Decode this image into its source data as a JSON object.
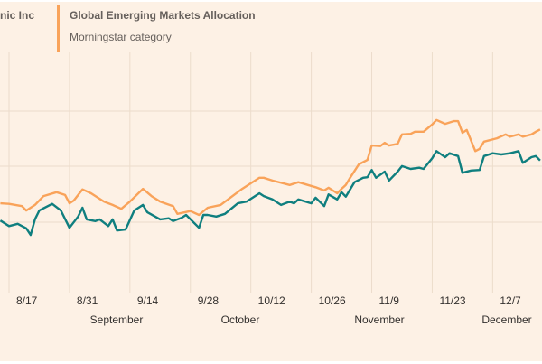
{
  "legend": [
    {
      "name": "nic Inc",
      "color": "#0f7f7f"
    },
    {
      "name": "Global Emerging Markets Allocation",
      "subtitle": "Morningstar category",
      "color": "#f9a35a"
    }
  ],
  "chart_data": {
    "type": "line",
    "title": "",
    "xlabel": "",
    "ylabel": "",
    "x_tick_labels": [
      "8/17",
      "8/31",
      "9/14",
      "9/28",
      "10/12",
      "10/26",
      "11/9",
      "11/23",
      "12/7"
    ],
    "month_labels": [
      "September",
      "October",
      "November",
      "December"
    ],
    "y_ticks_printed": false,
    "grid": true,
    "legend_placement": "top",
    "series": [
      {
        "name": "nic Inc",
        "color": "#0f7f7f",
        "points": [
          [
            "8/15",
            0.3
          ],
          [
            "8/17",
            -0.7
          ],
          [
            "8/19",
            -0.3
          ],
          [
            "8/21",
            -1.1
          ],
          [
            "8/22",
            -2.3
          ],
          [
            "8/23",
            0.5
          ],
          [
            "8/24",
            2.1
          ],
          [
            "8/27",
            3.3
          ],
          [
            "8/29",
            2.1
          ],
          [
            "8/31",
            -1.0
          ],
          [
            "9/2",
            1.0
          ],
          [
            "9/3",
            2.6
          ],
          [
            "9/4",
            0.5
          ],
          [
            "9/6",
            0.2
          ],
          [
            "9/7",
            0.5
          ],
          [
            "9/9",
            -0.7
          ],
          [
            "9/10",
            0.5
          ],
          [
            "9/11",
            -1.5
          ],
          [
            "9/13",
            -1.3
          ],
          [
            "9/15",
            2.1
          ],
          [
            "9/17",
            3.1
          ],
          [
            "9/18",
            1.8
          ],
          [
            "9/21",
            0.5
          ],
          [
            "9/23",
            0.7
          ],
          [
            "9/24",
            0.2
          ],
          [
            "9/26",
            0.8
          ],
          [
            "9/27",
            1.3
          ],
          [
            "9/30",
            -1.0
          ],
          [
            "10/1",
            1.3
          ],
          [
            "10/2",
            1.3
          ],
          [
            "10/4",
            1.0
          ],
          [
            "10/6",
            1.5
          ],
          [
            "10/9",
            3.4
          ],
          [
            "10/11",
            3.7
          ],
          [
            "10/14",
            5.2
          ],
          [
            "10/15",
            4.7
          ],
          [
            "10/17",
            4.1
          ],
          [
            "10/19",
            3.1
          ],
          [
            "10/21",
            3.7
          ],
          [
            "10/22",
            3.4
          ],
          [
            "10/23",
            4.1
          ],
          [
            "10/26",
            3.4
          ],
          [
            "10/27",
            4.4
          ],
          [
            "10/29",
            2.9
          ],
          [
            "10/30",
            5.0
          ],
          [
            "11/1",
            4.1
          ],
          [
            "11/2",
            5.4
          ],
          [
            "11/3",
            4.6
          ],
          [
            "11/5",
            7.2
          ],
          [
            "11/7",
            8.0
          ],
          [
            "11/8",
            8.1
          ],
          [
            "11/9",
            9.4
          ],
          [
            "11/10",
            8.0
          ],
          [
            "11/12",
            9.1
          ],
          [
            "11/13",
            7.5
          ],
          [
            "11/15",
            9.1
          ],
          [
            "11/16",
            10.1
          ],
          [
            "11/18",
            9.6
          ],
          [
            "11/20",
            9.8
          ],
          [
            "11/21",
            9.6
          ],
          [
            "11/23",
            11.5
          ],
          [
            "11/24",
            12.8
          ],
          [
            "11/26",
            11.7
          ],
          [
            "11/27",
            12.4
          ],
          [
            "11/29",
            11.9
          ],
          [
            "11/30",
            8.9
          ],
          [
            "12/2",
            9.3
          ],
          [
            "12/4",
            9.4
          ],
          [
            "12/5",
            11.9
          ],
          [
            "12/7",
            12.4
          ],
          [
            "12/9",
            12.2
          ],
          [
            "12/11",
            12.4
          ],
          [
            "12/13",
            12.8
          ],
          [
            "12/14",
            10.7
          ],
          [
            "12/16",
            11.7
          ],
          [
            "12/17",
            11.9
          ],
          [
            "12/18",
            11.1
          ]
        ]
      },
      {
        "name": "Global Emerging Markets Allocation",
        "color": "#f9a35a",
        "points": [
          [
            "8/15",
            3.4
          ],
          [
            "8/17",
            3.3
          ],
          [
            "8/20",
            2.9
          ],
          [
            "8/21",
            2.1
          ],
          [
            "8/23",
            3.1
          ],
          [
            "8/25",
            4.7
          ],
          [
            "8/28",
            5.4
          ],
          [
            "8/30",
            4.9
          ],
          [
            "8/31",
            3.4
          ],
          [
            "9/1",
            3.9
          ],
          [
            "9/3",
            5.9
          ],
          [
            "9/5",
            5.2
          ],
          [
            "9/8",
            3.7
          ],
          [
            "9/10",
            3.1
          ],
          [
            "9/12",
            2.4
          ],
          [
            "9/14",
            3.7
          ],
          [
            "9/17",
            6.0
          ],
          [
            "9/19",
            4.7
          ],
          [
            "9/21",
            3.7
          ],
          [
            "9/24",
            2.9
          ],
          [
            "9/25",
            1.5
          ],
          [
            "9/28",
            2.0
          ],
          [
            "9/30",
            1.3
          ],
          [
            "10/2",
            2.6
          ],
          [
            "10/5",
            3.1
          ],
          [
            "10/10",
            6.0
          ],
          [
            "10/14",
            8.0
          ],
          [
            "10/15",
            8.0
          ],
          [
            "10/17",
            7.5
          ],
          [
            "10/21",
            6.7
          ],
          [
            "10/23",
            7.2
          ],
          [
            "10/27",
            6.3
          ],
          [
            "10/29",
            5.7
          ],
          [
            "10/30",
            6.2
          ],
          [
            "11/1",
            5.2
          ],
          [
            "11/2",
            6.0
          ],
          [
            "11/3",
            6.7
          ],
          [
            "11/4",
            8.0
          ],
          [
            "11/6",
            10.4
          ],
          [
            "11/8",
            11.2
          ],
          [
            "11/9",
            13.8
          ],
          [
            "11/11",
            13.7
          ],
          [
            "11/12",
            14.3
          ],
          [
            "11/13",
            13.8
          ],
          [
            "11/15",
            14.1
          ],
          [
            "11/16",
            15.8
          ],
          [
            "11/18",
            15.9
          ],
          [
            "11/19",
            16.3
          ],
          [
            "11/21",
            16.3
          ],
          [
            "11/23",
            17.6
          ],
          [
            "11/24",
            18.4
          ],
          [
            "11/26",
            17.7
          ],
          [
            "11/28",
            18.2
          ],
          [
            "11/29",
            18.2
          ],
          [
            "11/30",
            16.1
          ],
          [
            "12/1",
            16.6
          ],
          [
            "12/3",
            12.8
          ],
          [
            "12/4",
            13.2
          ],
          [
            "12/5",
            14.5
          ],
          [
            "12/8",
            15.1
          ],
          [
            "12/10",
            15.8
          ],
          [
            "12/11",
            15.4
          ],
          [
            "12/13",
            15.8
          ],
          [
            "12/14",
            15.4
          ],
          [
            "12/16",
            15.8
          ],
          [
            "12/17",
            16.3
          ],
          [
            "12/18",
            16.7
          ]
        ]
      }
    ]
  }
}
